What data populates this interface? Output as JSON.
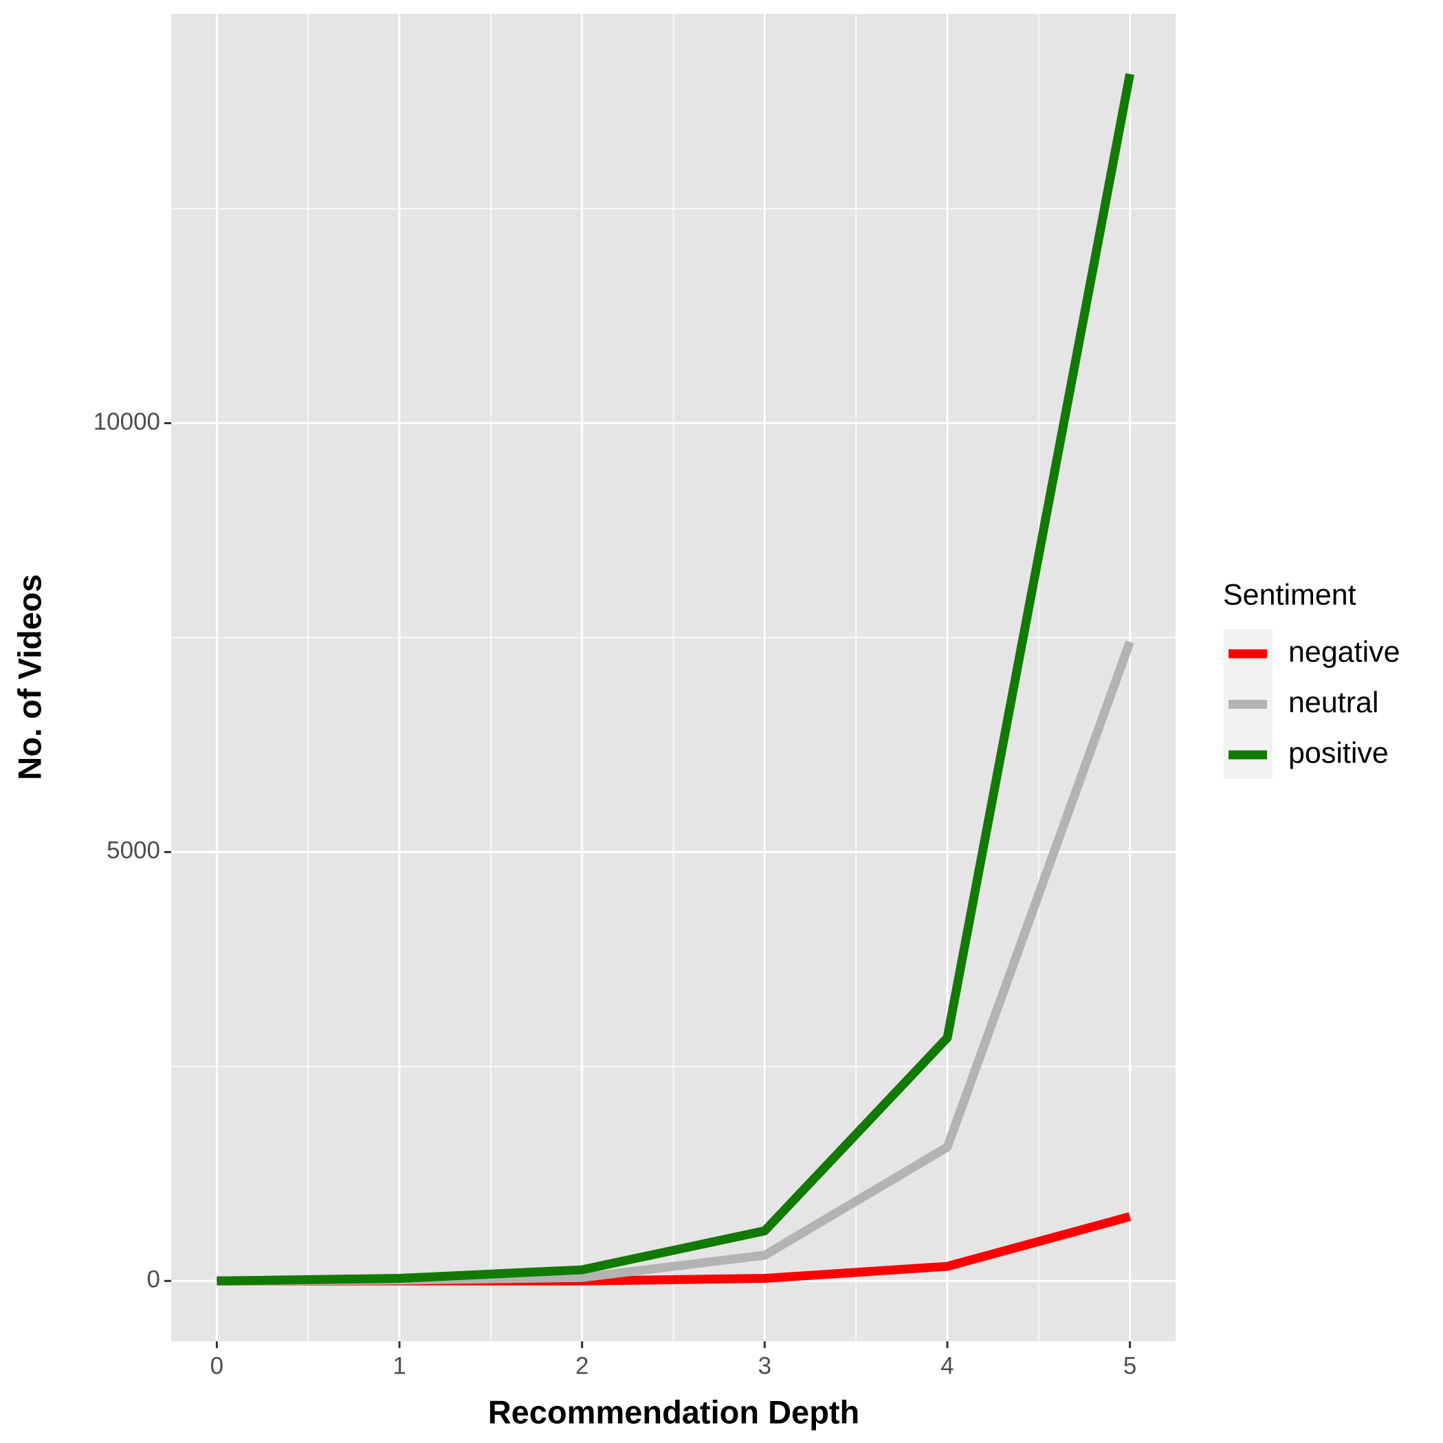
{
  "chart_data": {
    "type": "line",
    "x_label": "Recommendation Depth",
    "y_label": "No. of Videos",
    "x": [
      0,
      1,
      2,
      3,
      4,
      5
    ],
    "series": [
      {
        "name": "negative",
        "color": "#ff0000",
        "values": [
          0,
          0,
          0,
          30,
          170,
          750
        ]
      },
      {
        "name": "neutral",
        "color": "#b3b3b3",
        "values": [
          0,
          10,
          40,
          300,
          1560,
          7450
        ]
      },
      {
        "name": "positive",
        "color": "#117a00",
        "values": [
          0,
          30,
          130,
          584,
          2835,
          14070
        ]
      }
    ],
    "xlim": [
      -0.25,
      5.25
    ],
    "xticks": [
      0,
      1,
      2,
      3,
      4,
      5
    ],
    "x_minor_ticks": [
      0.5,
      1.5,
      2.5,
      3.5,
      4.5
    ],
    "ylim": [
      -703,
      14773
    ],
    "yticks": [
      0,
      5000,
      10000
    ],
    "y_minor_ticks": [
      2500,
      7500,
      12500
    ],
    "grid": true,
    "legend_title": "Sentiment",
    "legend_position": "right"
  }
}
